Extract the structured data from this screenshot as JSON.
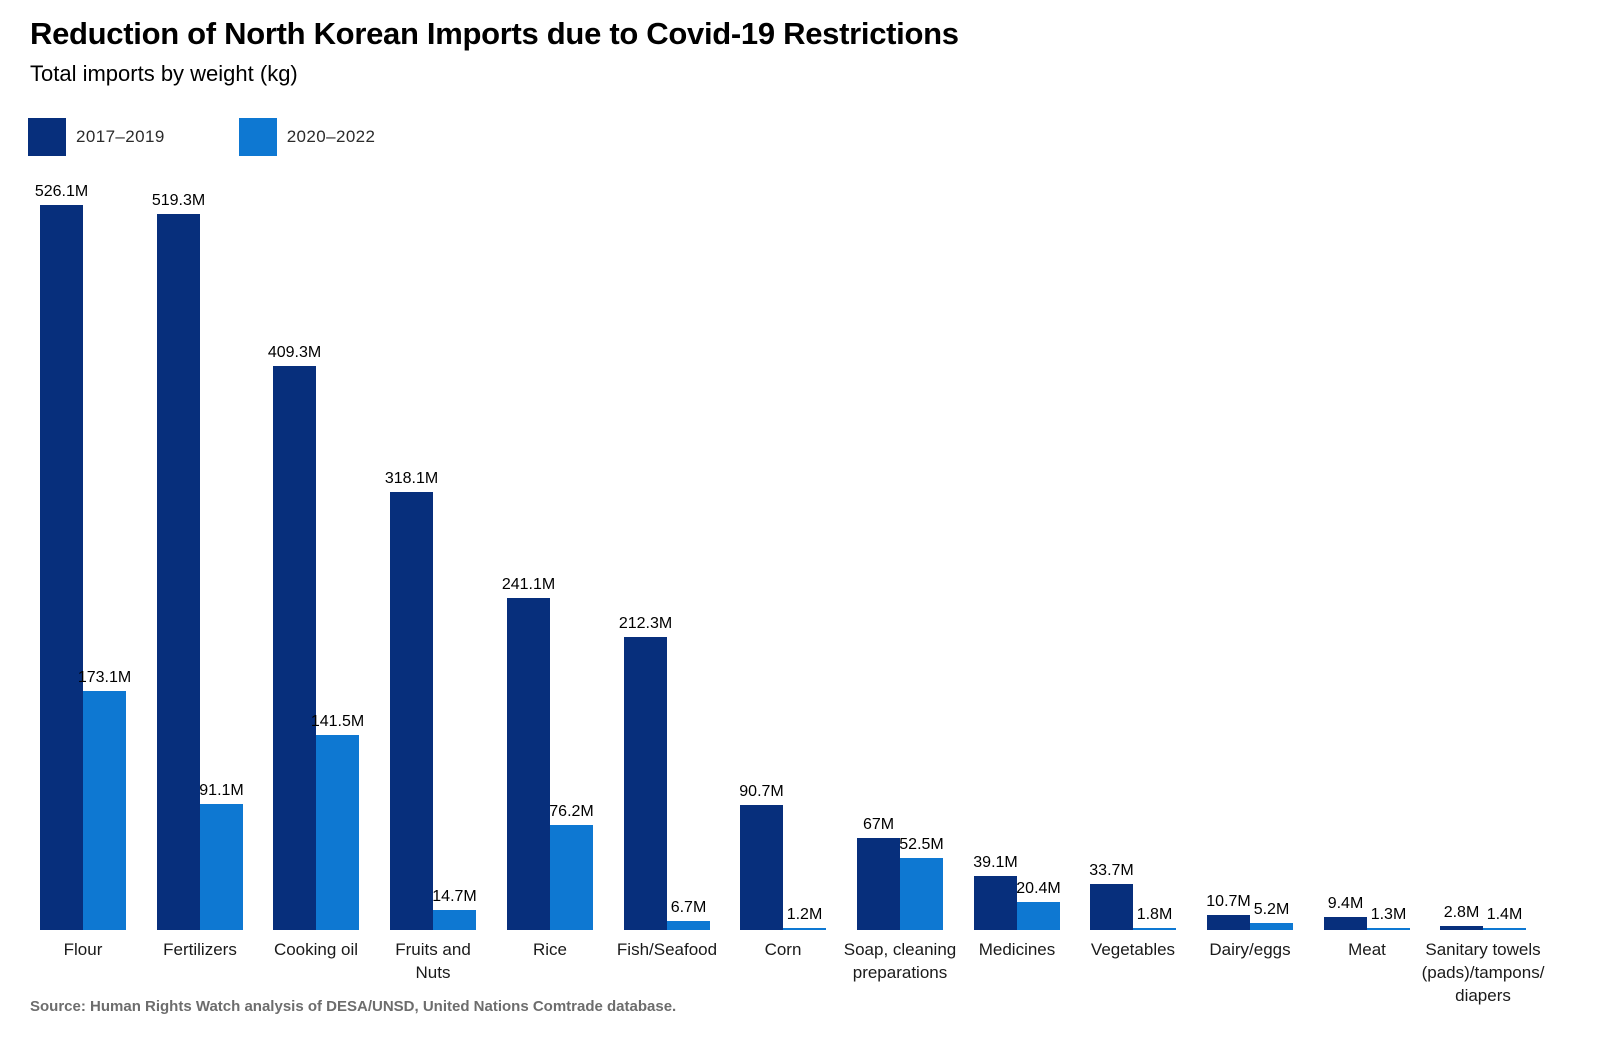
{
  "chart_data": {
    "type": "bar",
    "title": "Reduction of North Korean Imports due to Covid-19 Restrictions",
    "subtitle": "Total imports by weight (kg)",
    "unit": "kg",
    "value_suffix": "M",
    "ylim": [
      0,
      526.1
    ],
    "grid": false,
    "legend_position": "top-left",
    "categories": [
      "Flour",
      "Fertilizers",
      "Cooking oil",
      "Fruits and Nuts",
      "Rice",
      "Fish/Seafood",
      "Corn",
      "Soap, cleaning preparations",
      "Medicines",
      "Vegetables",
      "Dairy/eggs",
      "Meat",
      "Sanitary towels (pads)/tampons/diapers"
    ],
    "category_label_lines": [
      [
        "Flour"
      ],
      [
        "Fertilizers"
      ],
      [
        "Cooking oil"
      ],
      [
        "Fruits and",
        "Nuts"
      ],
      [
        "Rice"
      ],
      [
        "Fish/Seafood"
      ],
      [
        "Corn"
      ],
      [
        "Soap, cleaning",
        "preparations"
      ],
      [
        "Medicines"
      ],
      [
        "Vegetables"
      ],
      [
        "Dairy/eggs"
      ],
      [
        "Meat"
      ],
      [
        "Sanitary towels",
        "(pads)/tampons/",
        "diapers"
      ]
    ],
    "series": [
      {
        "name": "2017–2019",
        "color": "#072f7c",
        "values": [
          526.1,
          519.3,
          409.3,
          318.1,
          241.1,
          212.3,
          90.7,
          67,
          39.1,
          33.7,
          10.7,
          9.4,
          2.8
        ],
        "labels": [
          "526.1M",
          "519.3M",
          "409.3M",
          "318.1M",
          "241.1M",
          "212.3M",
          "90.7M",
          "67M",
          "39.1M",
          "33.7M",
          "10.7M",
          "9.4M",
          "2.8M"
        ]
      },
      {
        "name": "2020–2022",
        "color": "#0e78d2",
        "values": [
          173.1,
          91.1,
          141.5,
          14.7,
          76.2,
          6.7,
          1.2,
          52.5,
          20.4,
          1.8,
          5.2,
          1.3,
          1.4
        ],
        "labels": [
          "173.1M",
          "91.1M",
          "141.5M",
          "14.7M",
          "76.2M",
          "6.7M",
          "1.2M",
          "52.5M",
          "20.4M",
          "1.8M",
          "5.2M",
          "1.3M",
          "1.4M"
        ]
      }
    ],
    "source": "Source: Human Rights Watch analysis of DESA/UNSD, United Nations Comtrade database."
  }
}
